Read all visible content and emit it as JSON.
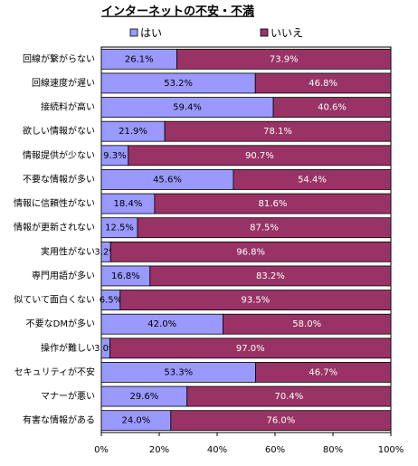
{
  "chart_data": {
    "type": "stacked-barh",
    "title": "インターネットの不安・不満",
    "categories": [
      "回線が繋がらない",
      "回線速度が遅い",
      "接続料が高い",
      "欲しい情報がない",
      "情報提供が少ない",
      "不要な情報が多い",
      "情報に信頼性がない",
      "情報が更新されない",
      "実用性がない",
      "専門用語が多い",
      "似ていて面白くない",
      "不要なDMが多い",
      "操作が難しい",
      "セキュリティが不安",
      "マナーが悪い",
      "有害な情報がある"
    ],
    "series": [
      {
        "name": "はい",
        "color": "#9999ff",
        "values": [
          26.1,
          53.2,
          59.4,
          21.9,
          9.3,
          45.6,
          18.4,
          12.5,
          3.2,
          16.8,
          6.5,
          42.0,
          3.0,
          53.3,
          29.6,
          24.0
        ],
        "value_labels": [
          "26.1%",
          "53.2%",
          "59.4%",
          "21.9%",
          "9.3%",
          "45.6%",
          "18.4%",
          "12.5%",
          "3.2%",
          "16.8%",
          "6.5%",
          "42.0%",
          "3.0%",
          "53.3%",
          "29.6%",
          "24.0%"
        ]
      },
      {
        "name": "いいえ",
        "color": "#993366",
        "values": [
          73.9,
          46.8,
          40.6,
          78.1,
          90.7,
          54.4,
          81.6,
          87.5,
          96.8,
          83.2,
          93.5,
          58.0,
          97.0,
          46.7,
          70.4,
          76.0
        ],
        "value_labels": [
          "73.9%",
          "46.8%",
          "40.6%",
          "78.1%",
          "90.7%",
          "54.4%",
          "81.6%",
          "87.5%",
          "96.8%",
          "83.2%",
          "93.5%",
          "58.0%",
          "97.0%",
          "46.7%",
          "70.4%",
          "76.0%"
        ]
      }
    ],
    "xlim": [
      0,
      100
    ],
    "xticks": [
      {
        "value": 0,
        "label": "0%"
      },
      {
        "value": 20,
        "label": "20%"
      },
      {
        "value": 40,
        "label": "40%"
      },
      {
        "value": 60,
        "label": "60%"
      },
      {
        "value": 80,
        "label": "80%"
      },
      {
        "value": 100,
        "label": "100%"
      }
    ],
    "grid": false
  }
}
